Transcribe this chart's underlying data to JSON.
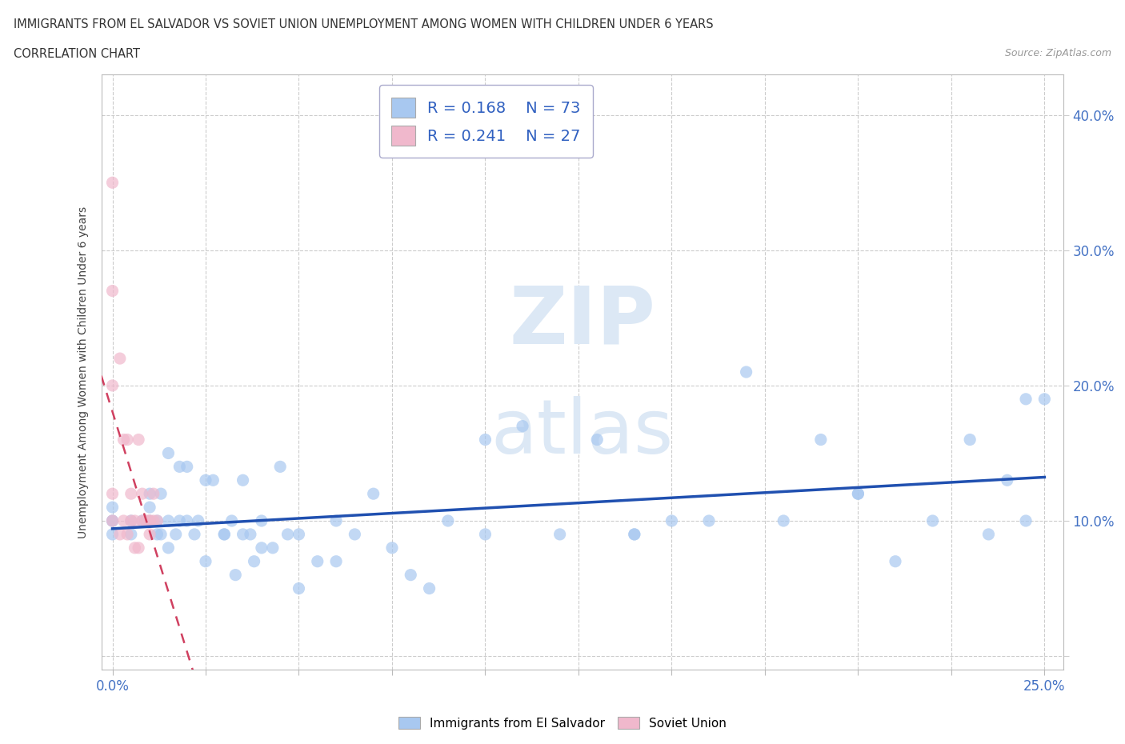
{
  "title_line1": "IMMIGRANTS FROM EL SALVADOR VS SOVIET UNION UNEMPLOYMENT AMONG WOMEN WITH CHILDREN UNDER 6 YEARS",
  "title_line2": "CORRELATION CHART",
  "source": "Source: ZipAtlas.com",
  "ylabel": "Unemployment Among Women with Children Under 6 years",
  "xlim": [
    -0.003,
    0.255
  ],
  "ylim": [
    -0.01,
    0.43
  ],
  "xticks": [
    0.0,
    0.025,
    0.05,
    0.075,
    0.1,
    0.125,
    0.15,
    0.175,
    0.2,
    0.225,
    0.25
  ],
  "yticks": [
    0.0,
    0.1,
    0.2,
    0.3,
    0.4
  ],
  "R_blue": 0.168,
  "N_blue": 73,
  "R_pink": 0.241,
  "N_pink": 27,
  "blue_color": "#a8c8f0",
  "pink_color": "#f0b8cc",
  "trend_blue_color": "#2050b0",
  "trend_pink_color": "#d04060",
  "blue_scatter_x": [
    0.0,
    0.0,
    0.0,
    0.0,
    0.005,
    0.005,
    0.008,
    0.01,
    0.01,
    0.01,
    0.012,
    0.012,
    0.013,
    0.013,
    0.015,
    0.015,
    0.015,
    0.017,
    0.018,
    0.018,
    0.02,
    0.02,
    0.022,
    0.023,
    0.025,
    0.025,
    0.027,
    0.03,
    0.03,
    0.032,
    0.033,
    0.035,
    0.035,
    0.037,
    0.038,
    0.04,
    0.04,
    0.043,
    0.045,
    0.047,
    0.05,
    0.05,
    0.055,
    0.06,
    0.06,
    0.065,
    0.07,
    0.075,
    0.08,
    0.085,
    0.09,
    0.1,
    0.1,
    0.11,
    0.12,
    0.13,
    0.14,
    0.14,
    0.15,
    0.16,
    0.17,
    0.18,
    0.19,
    0.2,
    0.2,
    0.21,
    0.22,
    0.23,
    0.235,
    0.24,
    0.245,
    0.245,
    0.25
  ],
  "blue_scatter_y": [
    0.09,
    0.1,
    0.1,
    0.11,
    0.09,
    0.1,
    0.1,
    0.1,
    0.11,
    0.12,
    0.09,
    0.1,
    0.09,
    0.12,
    0.08,
    0.1,
    0.15,
    0.09,
    0.1,
    0.14,
    0.1,
    0.14,
    0.09,
    0.1,
    0.07,
    0.13,
    0.13,
    0.09,
    0.09,
    0.1,
    0.06,
    0.09,
    0.13,
    0.09,
    0.07,
    0.08,
    0.1,
    0.08,
    0.14,
    0.09,
    0.05,
    0.09,
    0.07,
    0.07,
    0.1,
    0.09,
    0.12,
    0.08,
    0.06,
    0.05,
    0.1,
    0.09,
    0.16,
    0.17,
    0.09,
    0.16,
    0.09,
    0.09,
    0.1,
    0.1,
    0.21,
    0.1,
    0.16,
    0.12,
    0.12,
    0.07,
    0.1,
    0.16,
    0.09,
    0.13,
    0.1,
    0.19,
    0.19
  ],
  "pink_scatter_x": [
    0.0,
    0.0,
    0.0,
    0.0,
    0.0,
    0.002,
    0.002,
    0.003,
    0.003,
    0.004,
    0.004,
    0.005,
    0.005,
    0.006,
    0.006,
    0.007,
    0.007,
    0.008,
    0.008,
    0.009,
    0.009,
    0.01,
    0.01,
    0.01,
    0.011,
    0.011,
    0.012
  ],
  "pink_scatter_y": [
    0.1,
    0.12,
    0.2,
    0.27,
    0.35,
    0.09,
    0.22,
    0.1,
    0.16,
    0.09,
    0.16,
    0.1,
    0.12,
    0.1,
    0.08,
    0.08,
    0.16,
    0.1,
    0.12,
    0.1,
    0.1,
    0.09,
    0.1,
    0.1,
    0.1,
    0.12,
    0.1
  ]
}
